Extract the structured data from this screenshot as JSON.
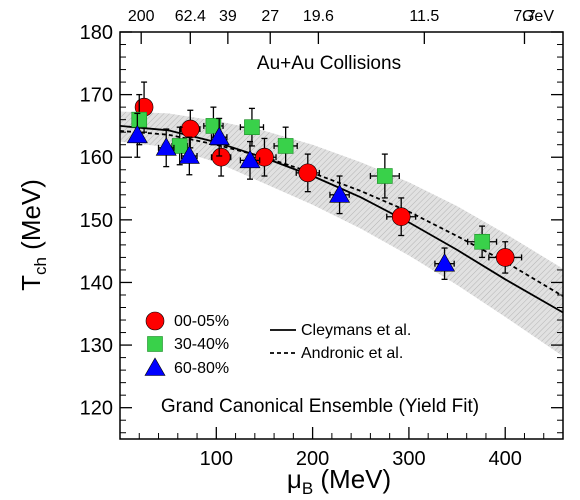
{
  "chart_data": {
    "type": "scatter",
    "title": "",
    "xlabel_main": "μ",
    "xlabel_sub": "B",
    "xlabel_unit": " (MeV)",
    "ylabel_main": "T",
    "ylabel_sub": "ch",
    "ylabel_unit": " (MeV)",
    "xlim": [
      0,
      460
    ],
    "ylim": [
      115,
      180
    ],
    "x_ticks": [
      100,
      200,
      300,
      400
    ],
    "y_ticks": [
      120,
      130,
      140,
      150,
      160,
      170,
      180
    ],
    "top_axis": [
      {
        "label": "200",
        "x": 22
      },
      {
        "label": "62.4",
        "x": 73
      },
      {
        "label": "39",
        "x": 112
      },
      {
        "label": "27",
        "x": 156
      },
      {
        "label": "19.6",
        "x": 206
      },
      {
        "label": "11.5",
        "x": 316
      },
      {
        "label": "7.7",
        "x": 420
      }
    ],
    "top_unit": "GeV",
    "annotation": "Au+Au Collisions",
    "footer": "Grand Canonical Ensemble (Yield Fit)",
    "series": [
      {
        "name": "00-05%",
        "marker": "circle",
        "color": "#ff0000",
        "points": [
          {
            "x": 25,
            "y": 168.0,
            "xerr": 5,
            "yerr": 4.0
          },
          {
            "x": 73,
            "y": 164.5,
            "xerr": 10,
            "yerr": 3.0
          },
          {
            "x": 105,
            "y": 160.0,
            "xerr": 10,
            "yerr": 3.0
          },
          {
            "x": 150,
            "y": 160.0,
            "xerr": 12,
            "yerr": 3.0
          },
          {
            "x": 195,
            "y": 157.5,
            "xerr": 12,
            "yerr": 3.0
          },
          {
            "x": 292,
            "y": 150.5,
            "xerr": 15,
            "yerr": 3.0
          },
          {
            "x": 400,
            "y": 144.0,
            "xerr": 17,
            "yerr": 2.5
          }
        ]
      },
      {
        "name": "30-40%",
        "marker": "square",
        "color": "#39d14a",
        "points": [
          {
            "x": 20,
            "y": 166.0,
            "xerr": 5,
            "yerr": 4.0
          },
          {
            "x": 62,
            "y": 161.8,
            "xerr": 8,
            "yerr": 3.0
          },
          {
            "x": 97,
            "y": 165.0,
            "xerr": 10,
            "yerr": 3.0
          },
          {
            "x": 137,
            "y": 164.8,
            "xerr": 12,
            "yerr": 3.0
          },
          {
            "x": 172,
            "y": 161.8,
            "xerr": 12,
            "yerr": 3.0
          },
          {
            "x": 275,
            "y": 157.0,
            "xerr": 15,
            "yerr": 3.5
          },
          {
            "x": 376,
            "y": 146.5,
            "xerr": 15,
            "yerr": 2.5
          }
        ]
      },
      {
        "name": "60-80%",
        "marker": "triangle",
        "color": "#0000ff",
        "points": [
          {
            "x": 18,
            "y": 163.5,
            "xerr": 4,
            "yerr": 3.5
          },
          {
            "x": 48,
            "y": 161.5,
            "xerr": 8,
            "yerr": 3.0
          },
          {
            "x": 72,
            "y": 160.2,
            "xerr": 8,
            "yerr": 3.0
          },
          {
            "x": 103,
            "y": 163.2,
            "xerr": 8,
            "yerr": 3.0
          },
          {
            "x": 135,
            "y": 159.5,
            "xerr": 10,
            "yerr": 3.0
          },
          {
            "x": 228,
            "y": 154.0,
            "xerr": 10,
            "yerr": 3.0
          },
          {
            "x": 337,
            "y": 143.0,
            "xerr": 10,
            "yerr": 2.5
          }
        ]
      }
    ],
    "curves": [
      {
        "name": "Cleymans et al.",
        "style": "solid",
        "color": "#000000",
        "x": [
          0,
          50,
          100,
          150,
          200,
          250,
          300,
          350,
          400,
          460
        ],
        "y": [
          165.0,
          164.3,
          162.4,
          159.9,
          157.0,
          153.6,
          149.6,
          145.2,
          140.5,
          135.2
        ]
      },
      {
        "name": "Andronic et al.",
        "style": "dashed",
        "color": "#000000",
        "x": [
          0,
          50,
          100,
          150,
          200,
          250,
          300,
          350,
          400,
          460
        ],
        "y": [
          164.2,
          163.6,
          162.0,
          160.0,
          157.5,
          154.6,
          151.3,
          147.4,
          143.3,
          137.8
        ]
      }
    ],
    "band": {
      "x": [
        0,
        50,
        100,
        150,
        200,
        250,
        300,
        350,
        400,
        460
      ],
      "upper": [
        167.3,
        167.0,
        165.8,
        164.2,
        162.0,
        159.2,
        156.0,
        152.2,
        147.8,
        142.2
      ],
      "lower": [
        162.5,
        161.6,
        159.2,
        155.8,
        152.4,
        148.6,
        144.3,
        139.6,
        134.5,
        128.2
      ]
    },
    "legend_placement": "bottom-left",
    "colors": {
      "band_fill": "#dcdcdc",
      "band_stroke": "#9a9a9a",
      "errorbar": "#000000"
    }
  }
}
